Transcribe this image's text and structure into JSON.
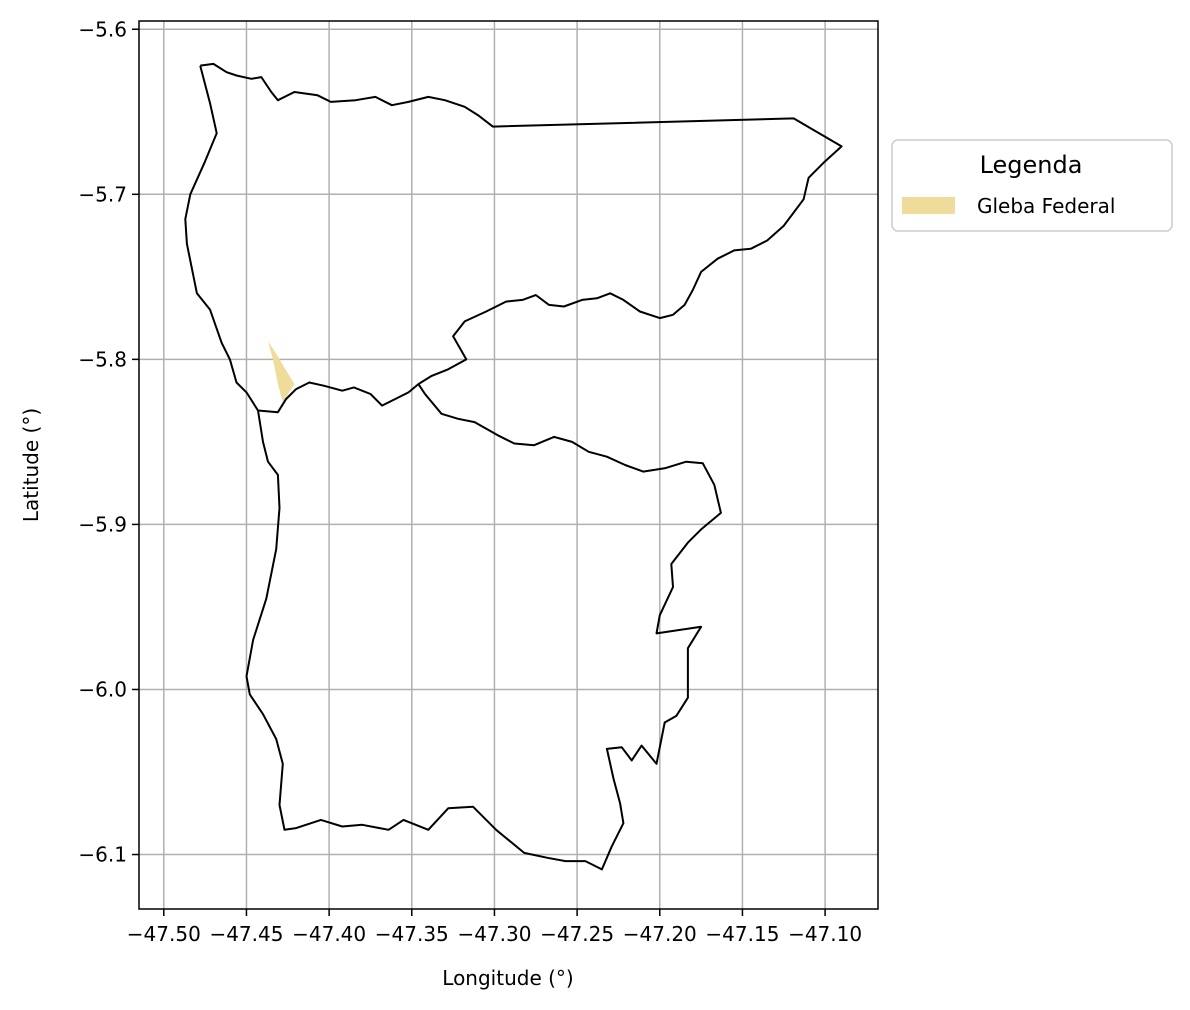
{
  "chart_data": {
    "type": "map",
    "xlabel": "Longitude (°)",
    "ylabel": "Latitude (°)",
    "xlim": [
      -47.515,
      -47.068
    ],
    "ylim": [
      -6.133,
      -5.595
    ],
    "grid": true,
    "x_ticks": [
      -47.5,
      -47.45,
      -47.4,
      -47.35,
      -47.3,
      -47.25,
      -47.2,
      -47.15,
      -47.1
    ],
    "x_tick_labels": [
      "−47.50",
      "−47.45",
      "−47.40",
      "−47.35",
      "−47.30",
      "−47.25",
      "−47.20",
      "−47.15",
      "−47.10"
    ],
    "y_ticks": [
      -5.6,
      -5.7,
      -5.8,
      -5.9,
      -6.0,
      -6.1
    ],
    "y_tick_labels": [
      "−5.6",
      "−5.7",
      "−5.8",
      "−5.9",
      "−6.0",
      "−6.1"
    ],
    "legend": {
      "title": "Legenda",
      "placement": "outside right, upper",
      "entries": [
        {
          "label": "Gleba Federal",
          "color": "#f0dc9a"
        }
      ]
    },
    "layers": [
      {
        "name": "municipal boundary",
        "kind": "outline",
        "stroke": "#000000",
        "fill": "none",
        "coordinates": [
          [
            -47.478,
            -5.622
          ],
          [
            -47.47,
            -5.621
          ],
          [
            -47.462,
            -5.626
          ],
          [
            -47.456,
            -5.628
          ],
          [
            -47.447,
            -5.63
          ],
          [
            -47.441,
            -5.629
          ],
          [
            -47.435,
            -5.638
          ],
          [
            -47.431,
            -5.643
          ],
          [
            -47.421,
            -5.638
          ],
          [
            -47.407,
            -5.64
          ],
          [
            -47.399,
            -5.644
          ],
          [
            -47.384,
            -5.643
          ],
          [
            -47.372,
            -5.641
          ],
          [
            -47.362,
            -5.646
          ],
          [
            -47.352,
            -5.644
          ],
          [
            -47.34,
            -5.641
          ],
          [
            -47.33,
            -5.643
          ],
          [
            -47.318,
            -5.647
          ],
          [
            -47.31,
            -5.652
          ],
          [
            -47.301,
            -5.659
          ],
          [
            -47.119,
            -5.654
          ],
          [
            -47.09,
            -5.671
          ],
          [
            -47.101,
            -5.681
          ],
          [
            -47.11,
            -5.69
          ],
          [
            -47.113,
            -5.703
          ],
          [
            -47.119,
            -5.711
          ],
          [
            -47.125,
            -5.719
          ],
          [
            -47.135,
            -5.728
          ],
          [
            -47.145,
            -5.733
          ],
          [
            -47.155,
            -5.734
          ],
          [
            -47.165,
            -5.739
          ],
          [
            -47.175,
            -5.747
          ],
          [
            -47.18,
            -5.758
          ],
          [
            -47.185,
            -5.767
          ],
          [
            -47.192,
            -5.773
          ],
          [
            -47.2,
            -5.775
          ],
          [
            -47.212,
            -5.771
          ],
          [
            -47.222,
            -5.764
          ],
          [
            -47.23,
            -5.76
          ],
          [
            -47.238,
            -5.763
          ],
          [
            -47.247,
            -5.764
          ],
          [
            -47.258,
            -5.768
          ],
          [
            -47.267,
            -5.767
          ],
          [
            -47.275,
            -5.761
          ],
          [
            -47.283,
            -5.764
          ],
          [
            -47.293,
            -5.765
          ],
          [
            -47.305,
            -5.771
          ],
          [
            -47.318,
            -5.777
          ],
          [
            -47.325,
            -5.786
          ],
          [
            -47.321,
            -5.793
          ],
          [
            -47.317,
            -5.8
          ],
          [
            -47.328,
            -5.806
          ],
          [
            -47.338,
            -5.81
          ],
          [
            -47.346,
            -5.815
          ],
          [
            -47.352,
            -5.82
          ],
          [
            -47.36,
            -5.824
          ],
          [
            -47.368,
            -5.828
          ],
          [
            -47.375,
            -5.821
          ],
          [
            -47.385,
            -5.817
          ],
          [
            -47.392,
            -5.819
          ],
          [
            -47.403,
            -5.816
          ],
          [
            -47.412,
            -5.814
          ],
          [
            -47.42,
            -5.818
          ],
          [
            -47.426,
            -5.824
          ],
          [
            -47.431,
            -5.832
          ],
          [
            -47.443,
            -5.831
          ],
          [
            -47.45,
            -5.82
          ],
          [
            -47.456,
            -5.814
          ],
          [
            -47.46,
            -5.8
          ],
          [
            -47.465,
            -5.79
          ],
          [
            -47.472,
            -5.77
          ],
          [
            -47.48,
            -5.76
          ],
          [
            -47.486,
            -5.73
          ],
          [
            -47.487,
            -5.715
          ],
          [
            -47.484,
            -5.7
          ],
          [
            -47.475,
            -5.68
          ],
          [
            -47.468,
            -5.663
          ],
          [
            -47.472,
            -5.645
          ],
          [
            -47.478,
            -5.622
          ]
        ]
      },
      {
        "name": "municipal boundary southern lobe",
        "kind": "outline",
        "stroke": "#000000",
        "fill": "none",
        "coordinates": [
          [
            -47.443,
            -5.831
          ],
          [
            -47.44,
            -5.85
          ],
          [
            -47.437,
            -5.862
          ],
          [
            -47.431,
            -5.87
          ],
          [
            -47.43,
            -5.89
          ],
          [
            -47.432,
            -5.915
          ],
          [
            -47.438,
            -5.945
          ],
          [
            -47.446,
            -5.97
          ],
          [
            -47.45,
            -5.992
          ],
          [
            -47.448,
            -6.003
          ],
          [
            -47.44,
            -6.015
          ],
          [
            -47.432,
            -6.03
          ],
          [
            -47.428,
            -6.045
          ],
          [
            -47.43,
            -6.07
          ],
          [
            -47.427,
            -6.085
          ],
          [
            -47.42,
            -6.084
          ],
          [
            -47.405,
            -6.079
          ],
          [
            -47.392,
            -6.083
          ],
          [
            -47.38,
            -6.082
          ],
          [
            -47.364,
            -6.085
          ],
          [
            -47.355,
            -6.079
          ],
          [
            -47.34,
            -6.085
          ],
          [
            -47.328,
            -6.072
          ],
          [
            -47.313,
            -6.071
          ],
          [
            -47.299,
            -6.085
          ],
          [
            -47.282,
            -6.099
          ],
          [
            -47.268,
            -6.102
          ],
          [
            -47.257,
            -6.104
          ],
          [
            -47.245,
            -6.104
          ],
          [
            -47.235,
            -6.109
          ],
          [
            -47.229,
            -6.095
          ],
          [
            -47.222,
            -6.081
          ],
          [
            -47.224,
            -6.069
          ],
          [
            -47.228,
            -6.054
          ],
          [
            -47.232,
            -6.036
          ],
          [
            -47.223,
            -6.035
          ],
          [
            -47.217,
            -6.043
          ],
          [
            -47.211,
            -6.034
          ],
          [
            -47.202,
            -6.045
          ],
          [
            -47.197,
            -6.02
          ],
          [
            -47.19,
            -6.016
          ],
          [
            -47.183,
            -6.005
          ],
          [
            -47.183,
            -5.975
          ],
          [
            -47.175,
            -5.962
          ],
          [
            -47.202,
            -5.966
          ],
          [
            -47.2,
            -5.955
          ],
          [
            -47.192,
            -5.938
          ],
          [
            -47.193,
            -5.924
          ],
          [
            -47.183,
            -5.911
          ],
          [
            -47.175,
            -5.903
          ],
          [
            -47.163,
            -5.893
          ],
          [
            -47.167,
            -5.876
          ],
          [
            -47.174,
            -5.863
          ],
          [
            -47.184,
            -5.862
          ],
          [
            -47.197,
            -5.866
          ],
          [
            -47.21,
            -5.868
          ],
          [
            -47.221,
            -5.864
          ],
          [
            -47.232,
            -5.859
          ],
          [
            -47.243,
            -5.856
          ],
          [
            -47.253,
            -5.85
          ],
          [
            -47.264,
            -5.847
          ],
          [
            -47.276,
            -5.852
          ],
          [
            -47.288,
            -5.851
          ],
          [
            -47.298,
            -5.846
          ],
          [
            -47.312,
            -5.838
          ],
          [
            -47.322,
            -5.836
          ],
          [
            -47.332,
            -5.833
          ],
          [
            -47.342,
            -5.821
          ],
          [
            -47.346,
            -5.815
          ]
        ]
      },
      {
        "name": "Gleba Federal",
        "kind": "fill",
        "fill": "#f0dc9a",
        "stroke": "none",
        "coordinates": [
          [
            -47.437,
            -5.789
          ],
          [
            -47.433,
            -5.795
          ],
          [
            -47.421,
            -5.815
          ],
          [
            -47.428,
            -5.826
          ],
          [
            -47.431,
            -5.815
          ],
          [
            -47.434,
            -5.8
          ],
          [
            -47.437,
            -5.789
          ]
        ]
      }
    ]
  }
}
